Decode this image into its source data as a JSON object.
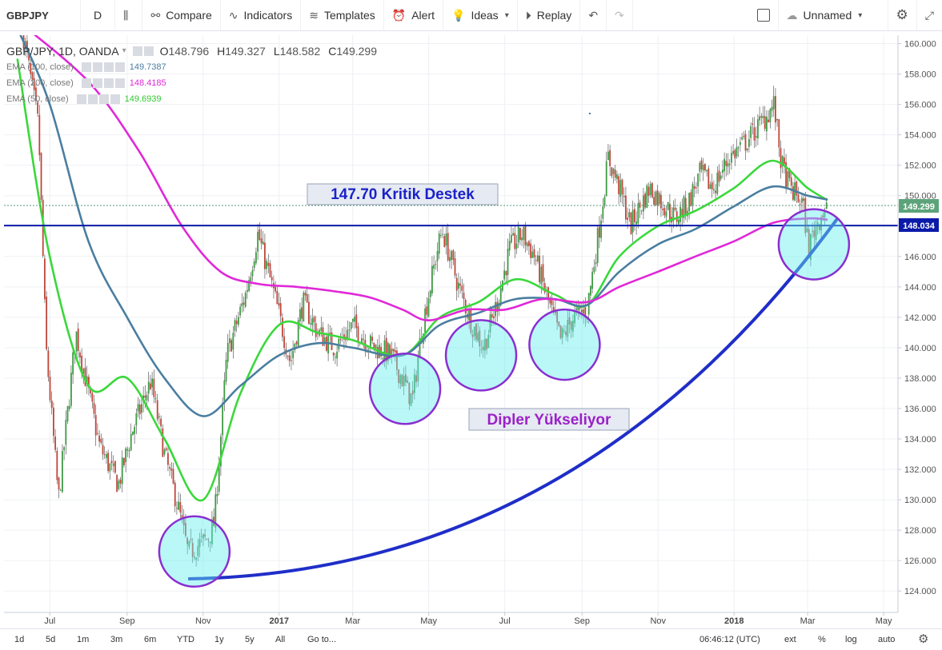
{
  "toolbar": {
    "symbol": "GBPJPY",
    "resolution": "D",
    "compare": "Compare",
    "indicators": "Indicators",
    "templates": "Templates",
    "alert": "Alert",
    "ideas": "Ideas",
    "replay": "Replay",
    "layout_name": "Unnamed"
  },
  "legend": {
    "title": "GBP/JPY, 1D, OANDA",
    "o_label": "O",
    "o": "148.796",
    "h_label": "H",
    "h": "149.327",
    "l_label": "L",
    "l": "148.582",
    "c_label": "C",
    "c": "149.299"
  },
  "indicators": [
    {
      "label": "EMA (100, close)",
      "value": "149.7387",
      "color": "#4a7ea0"
    },
    {
      "label": "EMA (200, close)",
      "value": "148.4185",
      "color": "#e028d8"
    },
    {
      "label": "EMA (50, close)",
      "value": "149.6939",
      "color": "#3ad83a"
    }
  ],
  "annotations": {
    "support": "147.70 Kritik Destek",
    "rising": "Dipler Yükseliyor"
  },
  "price_badges": {
    "last": "149.299",
    "line": "148.034"
  },
  "bottom": {
    "ranges": [
      "1d",
      "5d",
      "1m",
      "3m",
      "6m",
      "YTD",
      "1y",
      "5y",
      "All"
    ],
    "goto": "Go to...",
    "time": "06:46:12 (UTC)",
    "ext": "ext",
    "pct": "%",
    "log": "log",
    "auto": "auto"
  },
  "chart_data": {
    "type": "candlestick",
    "symbol": "GBP/JPY",
    "interval": "1D",
    "x_ticks": [
      "Jul",
      "Sep",
      "Nov",
      "2017",
      "Mar",
      "May",
      "Jul",
      "Sep",
      "Nov",
      "2018",
      "Mar",
      "May"
    ],
    "y_ticks": [
      "124.000",
      "126.000",
      "128.000",
      "130.000",
      "132.000",
      "134.000",
      "136.000",
      "138.000",
      "140.000",
      "142.000",
      "144.000",
      "146.000",
      "148.000",
      "150.000",
      "152.000",
      "154.000",
      "156.000",
      "158.000",
      "160.000"
    ],
    "ylim": [
      123,
      161
    ],
    "price_path": [
      [
        "2016-06-10",
        160.5
      ],
      [
        "2016-06-22",
        154.5
      ],
      [
        "2016-06-28",
        140.0
      ],
      [
        "2016-07-08",
        130.0
      ],
      [
        "2016-07-22",
        141.0
      ],
      [
        "2016-08-10",
        133.5
      ],
      [
        "2016-08-25",
        131.0
      ],
      [
        "2016-09-05",
        134.5
      ],
      [
        "2016-09-20",
        137.8
      ],
      [
        "2016-10-01",
        133.0
      ],
      [
        "2016-10-12",
        129.5
      ],
      [
        "2016-10-20",
        126.5
      ],
      [
        "2016-11-05",
        127.5
      ],
      [
        "2016-11-10",
        128.5
      ],
      [
        "2016-11-20",
        139.5
      ],
      [
        "2016-12-05",
        143.5
      ],
      [
        "2016-12-15",
        147.5
      ],
      [
        "2016-12-28",
        143.5
      ],
      [
        "2017-01-10",
        139.0
      ],
      [
        "2017-01-20",
        143.0
      ],
      [
        "2017-02-01",
        141.0
      ],
      [
        "2017-02-15",
        140.0
      ],
      [
        "2017-03-01",
        141.5
      ],
      [
        "2017-03-15",
        140.2
      ],
      [
        "2017-04-01",
        139.5
      ],
      [
        "2017-04-18",
        136.5
      ],
      [
        "2017-04-25",
        141.0
      ],
      [
        "2017-05-08",
        146.5
      ],
      [
        "2017-05-12",
        147.7
      ],
      [
        "2017-05-25",
        144.0
      ],
      [
        "2017-06-05",
        141.5
      ],
      [
        "2017-06-14",
        140.0
      ],
      [
        "2017-06-25",
        143.0
      ],
      [
        "2017-07-05",
        146.5
      ],
      [
        "2017-07-15",
        147.5
      ],
      [
        "2017-07-25",
        146.0
      ],
      [
        "2017-08-05",
        143.0
      ],
      [
        "2017-08-15",
        140.5
      ],
      [
        "2017-08-25",
        142.0
      ],
      [
        "2017-09-05",
        142.5
      ],
      [
        "2017-09-15",
        148.0
      ],
      [
        "2017-09-22",
        152.5
      ],
      [
        "2017-10-01",
        150.5
      ],
      [
        "2017-10-10",
        148.0
      ],
      [
        "2017-10-25",
        150.5
      ],
      [
        "2017-11-05",
        149.5
      ],
      [
        "2017-11-15",
        148.5
      ],
      [
        "2017-11-25",
        149.5
      ],
      [
        "2017-12-05",
        151.5
      ],
      [
        "2017-12-15",
        150.5
      ],
      [
        "2017-12-28",
        152.5
      ],
      [
        "2018-01-10",
        153.5
      ],
      [
        "2018-01-25",
        155.0
      ],
      [
        "2018-02-02",
        156.0
      ],
      [
        "2018-02-08",
        152.0
      ],
      [
        "2018-02-15",
        150.5
      ],
      [
        "2018-02-25",
        149.5
      ],
      [
        "2018-03-02",
        146.5
      ],
      [
        "2018-03-05",
        147.5
      ],
      [
        "2018-03-12",
        148.8
      ],
      [
        "2018-03-17",
        149.3
      ]
    ],
    "series": [
      {
        "name": "EMA (50, close)",
        "color": "#3ad83a",
        "points": [
          [
            "2016-06-05",
            159.0
          ],
          [
            "2016-07-01",
            146.0
          ],
          [
            "2016-08-01",
            137.5
          ],
          [
            "2016-09-01",
            138.0
          ],
          [
            "2016-10-01",
            134.0
          ],
          [
            "2016-11-01",
            130.0
          ],
          [
            "2016-12-01",
            137.0
          ],
          [
            "2017-01-01",
            141.5
          ],
          [
            "2017-02-01",
            141.0
          ],
          [
            "2017-03-01",
            140.5
          ],
          [
            "2017-04-10",
            139.5
          ],
          [
            "2017-05-10",
            142.0
          ],
          [
            "2017-06-10",
            143.0
          ],
          [
            "2017-07-10",
            144.5
          ],
          [
            "2017-08-10",
            143.5
          ],
          [
            "2017-09-05",
            142.8
          ],
          [
            "2017-10-01",
            146.0
          ],
          [
            "2017-11-01",
            148.0
          ],
          [
            "2017-12-01",
            149.0
          ],
          [
            "2018-01-01",
            150.5
          ],
          [
            "2018-02-01",
            152.3
          ],
          [
            "2018-03-01",
            150.5
          ],
          [
            "2018-03-17",
            149.7
          ]
        ]
      },
      {
        "name": "EMA (100, close)",
        "color": "#4a7ea0",
        "points": [
          [
            "2016-06-05",
            161.0
          ],
          [
            "2016-07-01",
            156.0
          ],
          [
            "2016-08-01",
            147.0
          ],
          [
            "2016-09-01",
            142.0
          ],
          [
            "2016-10-01",
            138.0
          ],
          [
            "2016-11-01",
            135.5
          ],
          [
            "2016-12-01",
            137.5
          ],
          [
            "2017-01-01",
            139.5
          ],
          [
            "2017-02-01",
            140.3
          ],
          [
            "2017-03-01",
            140.0
          ],
          [
            "2017-04-10",
            139.5
          ],
          [
            "2017-05-10",
            141.5
          ],
          [
            "2017-06-10",
            142.3
          ],
          [
            "2017-07-10",
            143.2
          ],
          [
            "2017-08-10",
            143.2
          ],
          [
            "2017-09-05",
            142.8
          ],
          [
            "2017-10-01",
            145.0
          ],
          [
            "2017-11-01",
            146.8
          ],
          [
            "2017-12-01",
            147.8
          ],
          [
            "2018-01-01",
            149.3
          ],
          [
            "2018-02-01",
            150.6
          ],
          [
            "2018-03-01",
            150.0
          ],
          [
            "2018-03-17",
            149.74
          ]
        ]
      },
      {
        "name": "EMA (200, close)",
        "color": "#e028d8",
        "points": [
          [
            "2016-06-05",
            161.5
          ],
          [
            "2016-08-01",
            157.5
          ],
          [
            "2016-09-10",
            153.0
          ],
          [
            "2016-10-15",
            148.0
          ],
          [
            "2016-11-15",
            145.0
          ],
          [
            "2016-12-15",
            144.2
          ],
          [
            "2017-01-15",
            144.0
          ],
          [
            "2017-02-15",
            143.7
          ],
          [
            "2017-03-15",
            143.3
          ],
          [
            "2017-04-10",
            142.5
          ],
          [
            "2017-05-01",
            141.8
          ],
          [
            "2017-06-01",
            142.5
          ],
          [
            "2017-07-01",
            142.5
          ],
          [
            "2017-08-01",
            143.2
          ],
          [
            "2017-09-05",
            143.0
          ],
          [
            "2017-10-01",
            144.0
          ],
          [
            "2017-11-01",
            145.0
          ],
          [
            "2017-12-01",
            146.0
          ],
          [
            "2018-01-01",
            147.0
          ],
          [
            "2018-02-01",
            148.2
          ],
          [
            "2018-03-01",
            148.5
          ],
          [
            "2018-03-17",
            148.42
          ]
        ]
      }
    ],
    "hlines": [
      {
        "value": 148.034,
        "color": "#0b1aa8"
      }
    ],
    "curve": {
      "from": [
        "2016-10-20",
        124.8
      ],
      "to": [
        "2018-03-25",
        148.5
      ]
    }
  }
}
